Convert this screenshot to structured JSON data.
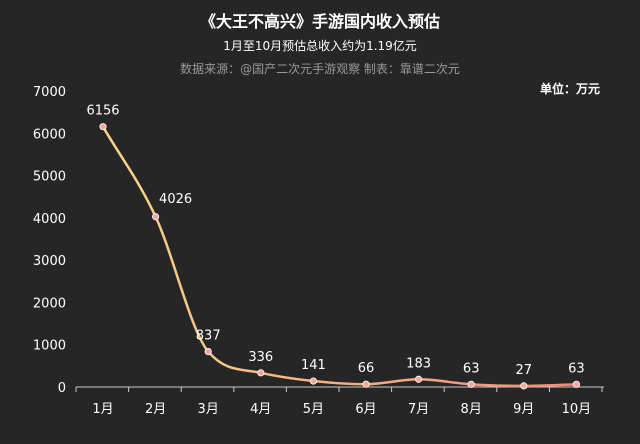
{
  "header": {
    "title": "《大王不高兴》手游国内收入预估",
    "subtitle": "1月至10月预估总收入约为1.19亿元",
    "source": "数据来源：@国产二次元手游观察  制表：靠谱二次元",
    "unit": "单位：万元"
  },
  "colors": {
    "background": "#262626",
    "line_start": "#f7d78a",
    "line_end": "#f08b7a",
    "marker": "#f4a8a0"
  },
  "chart_data": {
    "type": "line",
    "title": "《大王不高兴》手游国内收入预估",
    "subtitle": "1月至10月预估总收入约为1.19亿元",
    "xlabel": "",
    "ylabel": "",
    "categories": [
      "1月",
      "2月",
      "3月",
      "4月",
      "5月",
      "6月",
      "7月",
      "8月",
      "9月",
      "10月"
    ],
    "series": [
      {
        "values": [
          6156,
          4026,
          837,
          336,
          141,
          66,
          183,
          63,
          27,
          63
        ]
      }
    ],
    "data_labels": [
      "6156",
      "4026",
      "837",
      "336",
      "141",
      "66",
      "183",
      "63",
      "27",
      "63"
    ],
    "ylim": [
      0,
      7000
    ],
    "yticks": [
      "0",
      "1000",
      "2000",
      "3000",
      "4000",
      "5000",
      "6000",
      "7000"
    ],
    "smooth": true,
    "grid": false,
    "legend": "none"
  }
}
